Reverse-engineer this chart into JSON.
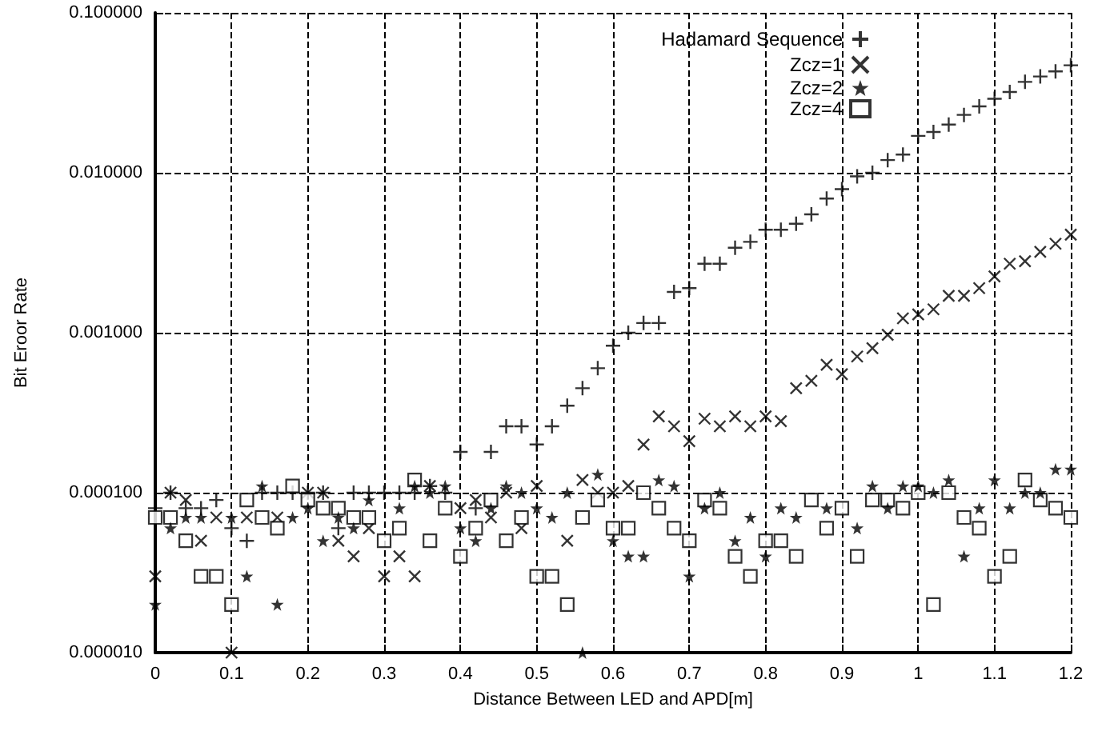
{
  "chart_data": {
    "type": "scatter",
    "xlabel": "Distance Between LED and APD[m]",
    "ylabel": "Bit Eroor Rate",
    "x": [
      0,
      0.02,
      0.04,
      0.06,
      0.08,
      0.1,
      0.12,
      0.14,
      0.16,
      0.18,
      0.2,
      0.22,
      0.24,
      0.26,
      0.28,
      0.3,
      0.32,
      0.34,
      0.36,
      0.38,
      0.4,
      0.42,
      0.44,
      0.46,
      0.48,
      0.5,
      0.52,
      0.54,
      0.56,
      0.58,
      0.6,
      0.62,
      0.64,
      0.66,
      0.68,
      0.7,
      0.72,
      0.74,
      0.76,
      0.78,
      0.8,
      0.82,
      0.84,
      0.86,
      0.88,
      0.9,
      0.92,
      0.94,
      0.96,
      0.98,
      1,
      1.02,
      1.04,
      1.06,
      1.08,
      1.1,
      1.12,
      1.14,
      1.16,
      1.18,
      1.2
    ],
    "series": [
      {
        "name": "Hadamard Sequence",
        "color": "#000000",
        "marker": "plus",
        "values": [
          8e-05,
          0.0001,
          8e-05,
          8e-05,
          9e-05,
          6e-05,
          5e-05,
          0.0001,
          0.0001,
          0.0001,
          0.0001,
          0.0001,
          6e-05,
          0.0001,
          0.0001,
          0.0001,
          0.0001,
          0.0001,
          0.00011,
          0.0001,
          0.00018,
          8e-05,
          0.00018,
          0.00026,
          0.00026,
          0.0002,
          0.00026,
          0.00035,
          0.00045,
          0.0006,
          0.00083,
          0.001,
          0.00115,
          0.00115,
          0.0018,
          0.0019,
          0.0027,
          0.0027,
          0.0034,
          0.0037,
          0.0044,
          0.0044,
          0.0048,
          0.0055,
          0.0069,
          0.0079,
          0.0095,
          0.01,
          0.012,
          0.013,
          0.017,
          0.018,
          0.02,
          0.023,
          0.026,
          0.029,
          0.032,
          0.037,
          0.04,
          0.043,
          0.047
        ]
      },
      {
        "name": "Zcz=1",
        "color": "#000000",
        "marker": "cross",
        "values": [
          3e-05,
          0.0001,
          9e-05,
          5e-05,
          7e-05,
          1e-05,
          7e-05,
          null,
          7e-05,
          null,
          0.0001,
          0.0001,
          5e-05,
          4e-05,
          6e-05,
          3e-05,
          4e-05,
          3e-05,
          0.00011,
          null,
          8e-05,
          9e-05,
          7e-05,
          0.0001,
          6e-05,
          0.00011,
          null,
          5e-05,
          0.00012,
          0.0001,
          0.0001,
          0.00011,
          0.0002,
          0.0003,
          0.00026,
          0.00021,
          0.00029,
          0.00026,
          0.0003,
          0.00026,
          0.0003,
          0.00028,
          0.00045,
          0.0005,
          0.00063,
          0.00055,
          0.00071,
          0.0008,
          0.00097,
          0.00123,
          0.0013,
          0.0014,
          0.0017,
          0.0017,
          0.0019,
          0.00225,
          0.0027,
          0.0028,
          0.0032,
          0.0036,
          0.0041
        ]
      },
      {
        "name": "Zcz=2",
        "color": "#000000",
        "marker": "star",
        "values": [
          2e-05,
          6e-05,
          7e-05,
          7e-05,
          null,
          7e-05,
          3e-05,
          0.00011,
          2e-05,
          7e-05,
          8e-05,
          5e-05,
          7e-05,
          6e-05,
          9e-05,
          null,
          8e-05,
          0.00011,
          0.0001,
          0.00011,
          6e-05,
          5e-05,
          8e-05,
          0.00011,
          0.0001,
          8e-05,
          7e-05,
          0.0001,
          1e-05,
          0.00013,
          5e-05,
          4e-05,
          4e-05,
          0.00012,
          0.00011,
          3e-05,
          8e-05,
          0.0001,
          5e-05,
          7e-05,
          4e-05,
          8e-05,
          7e-05,
          null,
          8e-05,
          null,
          6e-05,
          0.00011,
          8e-05,
          0.00011,
          0.00011,
          0.0001,
          0.00012,
          4e-05,
          8e-05,
          0.00012,
          8e-05,
          0.0001,
          0.0001,
          0.00014,
          0.00014
        ]
      },
      {
        "name": "Zcz=4",
        "color": "#000000",
        "marker": "square",
        "values": [
          7e-05,
          7e-05,
          5e-05,
          3e-05,
          3e-05,
          2e-05,
          9e-05,
          7e-05,
          6e-05,
          0.00011,
          9e-05,
          8e-05,
          8e-05,
          7e-05,
          7e-05,
          5e-05,
          6e-05,
          0.00012,
          5e-05,
          8e-05,
          4e-05,
          6e-05,
          9e-05,
          5e-05,
          7e-05,
          3e-05,
          3e-05,
          2e-05,
          7e-05,
          9e-05,
          6e-05,
          6e-05,
          0.0001,
          8e-05,
          6e-05,
          5e-05,
          9e-05,
          8e-05,
          4e-05,
          3e-05,
          5e-05,
          5e-05,
          4e-05,
          9e-05,
          6e-05,
          8e-05,
          4e-05,
          9e-05,
          9e-05,
          8e-05,
          0.0001,
          2e-05,
          0.0001,
          7e-05,
          6e-05,
          3e-05,
          4e-05,
          0.00012,
          9e-05,
          8e-05,
          7e-05
        ]
      }
    ],
    "xlim": [
      0,
      1.2
    ],
    "xticks": [
      0,
      0.1,
      0.2,
      0.3,
      0.4,
      0.5,
      0.6,
      0.7,
      0.8,
      0.9,
      1,
      1.1,
      1.2
    ],
    "ylim": [
      1e-05,
      0.1
    ],
    "yticks": [
      {
        "value": 1e-05,
        "label": "0.000010"
      },
      {
        "value": 0.0001,
        "label": "0.000100"
      },
      {
        "value": 0.001,
        "label": "0.001000"
      },
      {
        "value": 0.01,
        "label": "0.010000"
      },
      {
        "value": 0.1,
        "label": "0.100000"
      }
    ],
    "log": "y",
    "grid": true,
    "legend": "top right"
  }
}
